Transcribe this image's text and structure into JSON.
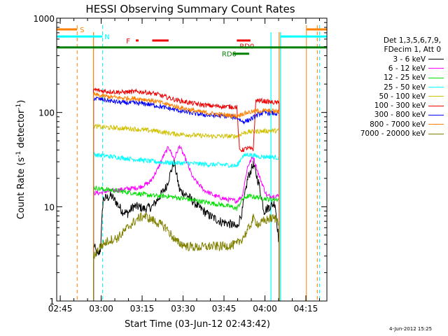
{
  "chart_data": {
    "type": "line",
    "title": "HESSI Observing Summary Count Rates",
    "xlabel": "Start Time (03-Jun-12 02:43:42)",
    "ylabel": "Count Rate (s",
    "ylabel_sup1": "-1",
    "ylabel_mid": " detector",
    "ylabel_sup2": "-1",
    "ylabel_end": ")",
    "ylog": true,
    "ylim": [
      1,
      1000
    ],
    "yticks": [
      "1",
      "10",
      "100",
      "1000"
    ],
    "xlim_minutes": [
      0,
      99
    ],
    "xticks": [
      {
        "label": "02:45",
        "t": 1.3
      },
      {
        "label": "03:00",
        "t": 16.3
      },
      {
        "label": "03:15",
        "t": 31.3
      },
      {
        "label": "03:30",
        "t": 46.3
      },
      {
        "label": "03:45",
        "t": 61.3
      },
      {
        "label": "04:00",
        "t": 76.3
      },
      {
        "label": "04:15",
        "t": 91.3
      }
    ],
    "legend_header": [
      "Det 1,3,5,6,7,9,",
      "FDecim 1, Att 0"
    ],
    "series": [
      {
        "name": "3 - 6 keV",
        "color": "#000000",
        "points": [
          [
            13.5,
            4
          ],
          [
            15,
            3
          ],
          [
            16,
            3.5
          ],
          [
            17,
            12
          ],
          [
            20,
            13
          ],
          [
            22,
            11
          ],
          [
            24,
            9
          ],
          [
            26,
            8.5
          ],
          [
            28,
            10
          ],
          [
            30,
            10
          ],
          [
            32,
            9.5
          ],
          [
            35,
            10
          ],
          [
            37,
            12
          ],
          [
            40,
            16
          ],
          [
            43,
            30
          ],
          [
            45,
            15
          ],
          [
            48,
            13
          ],
          [
            52,
            10
          ],
          [
            56,
            8
          ],
          [
            60,
            7
          ],
          [
            64,
            6.5
          ],
          [
            66,
            6
          ],
          [
            68,
            9
          ],
          [
            70,
            20
          ],
          [
            72,
            28
          ],
          [
            74,
            18
          ],
          [
            76,
            9
          ],
          [
            78,
            10
          ],
          [
            80,
            11
          ],
          [
            81.5,
            4
          ]
        ]
      },
      {
        "name": "6 - 12 keV",
        "color": "#ff00ff",
        "points": [
          [
            13.5,
            14
          ],
          [
            16,
            14
          ],
          [
            18,
            14.5
          ],
          [
            22,
            15
          ],
          [
            26,
            15.5
          ],
          [
            30,
            16
          ],
          [
            34,
            18
          ],
          [
            37,
            25
          ],
          [
            39,
            34
          ],
          [
            41,
            43
          ],
          [
            43,
            32
          ],
          [
            45,
            44
          ],
          [
            47,
            33
          ],
          [
            50,
            20
          ],
          [
            54,
            15
          ],
          [
            58,
            13
          ],
          [
            62,
            12
          ],
          [
            66,
            11.5
          ],
          [
            68,
            13
          ],
          [
            70,
            27
          ],
          [
            72,
            34
          ],
          [
            74,
            22
          ],
          [
            77,
            13
          ],
          [
            80,
            13
          ],
          [
            81.5,
            13
          ]
        ]
      },
      {
        "name": "12 - 25 keV",
        "color": "#00e000",
        "points": [
          [
            13.5,
            16
          ],
          [
            16,
            15.5
          ],
          [
            20,
            15
          ],
          [
            24,
            14.5
          ],
          [
            28,
            14
          ],
          [
            32,
            13.5
          ],
          [
            36,
            13
          ],
          [
            40,
            13
          ],
          [
            44,
            12.5
          ],
          [
            48,
            12
          ],
          [
            52,
            11.5
          ],
          [
            56,
            11
          ],
          [
            60,
            10.5
          ],
          [
            64,
            10
          ],
          [
            66,
            9.5
          ],
          [
            68,
            12
          ],
          [
            70,
            13
          ],
          [
            74,
            12.5
          ],
          [
            78,
            12
          ],
          [
            81.5,
            12
          ]
        ]
      },
      {
        "name": "25 - 50 keV",
        "color": "#00ffff",
        "points": [
          [
            13.5,
            36
          ],
          [
            16,
            35
          ],
          [
            20,
            34
          ],
          [
            24,
            33
          ],
          [
            28,
            32
          ],
          [
            32,
            31
          ],
          [
            36,
            30
          ],
          [
            40,
            29.5
          ],
          [
            44,
            29
          ],
          [
            48,
            29
          ],
          [
            52,
            28.5
          ],
          [
            56,
            28
          ],
          [
            60,
            28
          ],
          [
            64,
            27.5
          ],
          [
            66,
            27
          ],
          [
            68,
            34
          ],
          [
            70,
            36
          ],
          [
            74,
            34
          ],
          [
            78,
            34
          ],
          [
            81.5,
            33
          ]
        ]
      },
      {
        "name": "50 - 100 keV",
        "color": "#d0c000",
        "points": [
          [
            13.5,
            72
          ],
          [
            16,
            70
          ],
          [
            20,
            69
          ],
          [
            24,
            68
          ],
          [
            28,
            67
          ],
          [
            32,
            65
          ],
          [
            36,
            64
          ],
          [
            40,
            61
          ],
          [
            44,
            59
          ],
          [
            48,
            58
          ],
          [
            52,
            57
          ],
          [
            56,
            56
          ],
          [
            60,
            56
          ],
          [
            64,
            56
          ],
          [
            66,
            56
          ],
          [
            68,
            60
          ],
          [
            70,
            62
          ],
          [
            74,
            63
          ],
          [
            78,
            64
          ],
          [
            81.5,
            64
          ]
        ]
      },
      {
        "name": "100 - 300 keV",
        "color": "#ee0000",
        "points": [
          [
            13.5,
            175
          ],
          [
            16,
            170
          ],
          [
            20,
            166
          ],
          [
            24,
            164
          ],
          [
            28,
            166
          ],
          [
            32,
            165
          ],
          [
            36,
            158
          ],
          [
            40,
            146
          ],
          [
            44,
            135
          ],
          [
            48,
            128
          ],
          [
            52,
            122
          ],
          [
            56,
            118
          ],
          [
            60,
            116
          ],
          [
            64,
            115
          ],
          [
            66,
            114
          ],
          [
            67,
            40
          ],
          [
            68,
            40
          ],
          [
            70,
            42
          ],
          [
            72,
            40
          ],
          [
            73,
            135
          ],
          [
            76,
            132
          ],
          [
            79,
            128
          ],
          [
            81.5,
            126
          ]
        ]
      },
      {
        "name": "300 - 800 keV",
        "color": "#0000ff",
        "points": [
          [
            13.5,
            142
          ],
          [
            16,
            138
          ],
          [
            20,
            132
          ],
          [
            24,
            127
          ],
          [
            28,
            126
          ],
          [
            32,
            124
          ],
          [
            36,
            119
          ],
          [
            40,
            112
          ],
          [
            44,
            106
          ],
          [
            48,
            100
          ],
          [
            52,
            96
          ],
          [
            56,
            93
          ],
          [
            60,
            92
          ],
          [
            64,
            90
          ],
          [
            66,
            89
          ],
          [
            68,
            80
          ],
          [
            70,
            82
          ],
          [
            72,
            88
          ],
          [
            74,
            96
          ],
          [
            76,
            100
          ],
          [
            79,
            98
          ],
          [
            81.5,
            96
          ]
        ]
      },
      {
        "name": "800 - 7000 keV",
        "color": "#ff8000",
        "points": [
          [
            13.5,
            156
          ],
          [
            16,
            150
          ],
          [
            20,
            146
          ],
          [
            24,
            142
          ],
          [
            28,
            141
          ],
          [
            32,
            138
          ],
          [
            36,
            132
          ],
          [
            40,
            123
          ],
          [
            44,
            115
          ],
          [
            48,
            108
          ],
          [
            52,
            102
          ],
          [
            56,
            98
          ],
          [
            60,
            95
          ],
          [
            64,
            93
          ],
          [
            66,
            92
          ],
          [
            68,
            96
          ],
          [
            70,
            100
          ],
          [
            74,
            104
          ],
          [
            78,
            104
          ],
          [
            81.5,
            102
          ]
        ]
      },
      {
        "name": "7000 - 20000 keV",
        "color": "#808000",
        "points": [
          [
            13.5,
            3
          ],
          [
            16,
            3.8
          ],
          [
            18,
            4.2
          ],
          [
            20,
            4.5
          ],
          [
            22,
            4.6
          ],
          [
            24,
            5.2
          ],
          [
            26,
            6
          ],
          [
            28,
            6.8
          ],
          [
            30,
            7.6
          ],
          [
            32,
            8
          ],
          [
            34,
            7.5
          ],
          [
            36,
            7
          ],
          [
            38,
            6.5
          ],
          [
            40,
            6
          ],
          [
            42,
            5
          ],
          [
            44,
            4.2
          ],
          [
            46,
            4
          ],
          [
            48,
            3.8
          ],
          [
            52,
            3.7
          ],
          [
            56,
            3.8
          ],
          [
            60,
            3.8
          ],
          [
            64,
            3.9
          ],
          [
            66,
            4
          ],
          [
            68,
            4.6
          ],
          [
            70,
            5.6
          ],
          [
            72,
            7.5
          ],
          [
            74,
            6.5
          ],
          [
            76,
            7
          ],
          [
            78,
            7.5
          ],
          [
            80,
            7.5
          ],
          [
            81.5,
            7
          ]
        ]
      }
    ],
    "bracket_vlines": [
      {
        "t": 13.5,
        "color": "#ff8000"
      },
      {
        "t": 81.5,
        "color": "#ff8000"
      },
      {
        "t": 78.5,
        "color": "#00ffff"
      },
      {
        "t": 82.0,
        "color": "#00ffff"
      }
    ],
    "attenuator_lines": [
      {
        "t": 7.5,
        "color": "#ff8000",
        "dashed": true
      },
      {
        "t": 16.8,
        "color": "#00ffff",
        "dashed": true
      },
      {
        "t": 91.5,
        "color": "#ff8000",
        "dashed": false
      },
      {
        "t": 95.5,
        "color": "#ff8000",
        "dashed": true
      },
      {
        "t": 96.3,
        "color": "#00ffff",
        "dashed": true
      }
    ],
    "flags": [
      {
        "label": "S",
        "color": "#ff8000",
        "segments": [
          [
            0,
            7.5
          ],
          [
            91.5,
            99
          ]
        ],
        "level": 760
      },
      {
        "label": "N",
        "color": "#00ffff",
        "segments": [
          [
            0,
            16.8
          ],
          [
            82,
            99
          ]
        ],
        "level": 640
      },
      {
        "label": "F",
        "color": "#ee0000",
        "segments": [
          [
            29,
            30
          ],
          [
            35,
            41
          ],
          [
            66,
            71
          ]
        ],
        "level": 580
      },
      {
        "label": "RD0",
        "color": "#ee0000",
        "segments": [],
        "level": 510
      },
      {
        "label": "",
        "color": "#008000",
        "segments": [
          [
            0,
            99
          ]
        ],
        "level": 490
      },
      {
        "label": "RD6",
        "color": "#008000",
        "segments": [
          [
            64.5,
            70.5
          ]
        ],
        "level": 420
      }
    ],
    "timestamp": "4-Jun-2012 15:25"
  }
}
